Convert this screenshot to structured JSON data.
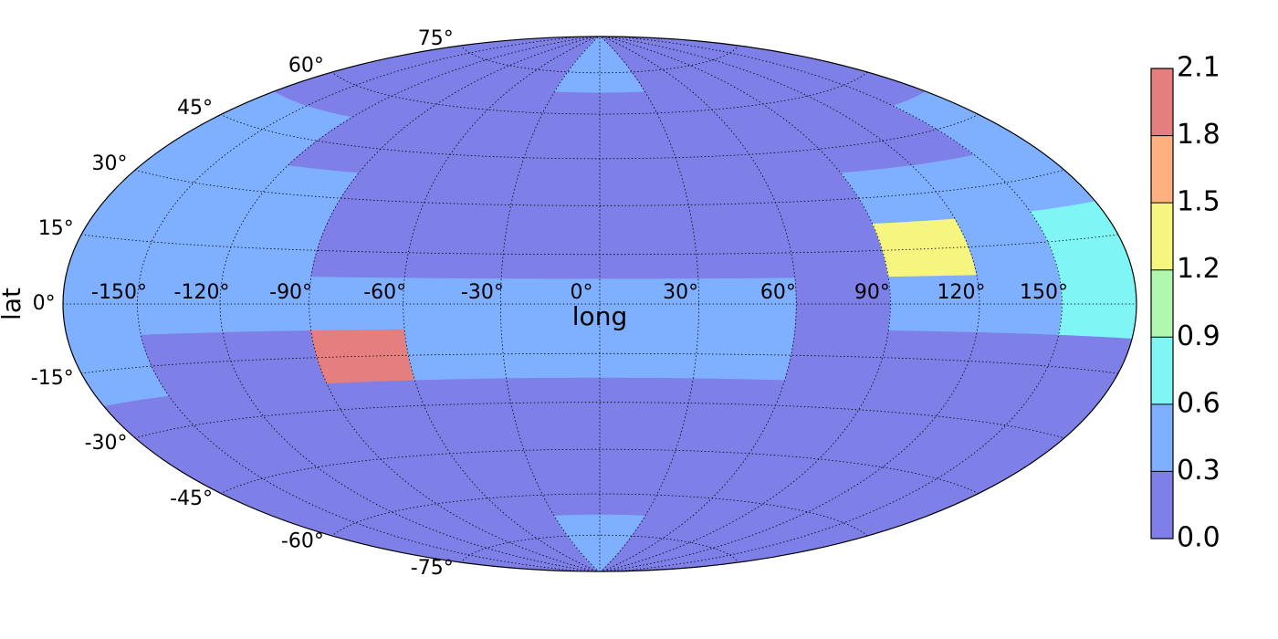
{
  "chart_data": {
    "type": "hammer-contour",
    "xlabel": "long",
    "ylabel": "lat",
    "xticks": [
      {
        "value": -150,
        "label": "-150°"
      },
      {
        "value": -120,
        "label": "-120°"
      },
      {
        "value": -90,
        "label": "-90°"
      },
      {
        "value": -60,
        "label": "-60°"
      },
      {
        "value": -30,
        "label": "-30°"
      },
      {
        "value": 0,
        "label": "0°"
      },
      {
        "value": 30,
        "label": "30°"
      },
      {
        "value": 60,
        "label": "60°"
      },
      {
        "value": 90,
        "label": "90°"
      },
      {
        "value": 120,
        "label": "120°"
      },
      {
        "value": 150,
        "label": "150°"
      }
    ],
    "yticks": [
      {
        "value": -75,
        "label": "-75°"
      },
      {
        "value": -60,
        "label": "-60°"
      },
      {
        "value": -45,
        "label": "-45°"
      },
      {
        "value": -30,
        "label": "-30°"
      },
      {
        "value": -15,
        "label": "-15°"
      },
      {
        "value": 0,
        "label": "0°"
      },
      {
        "value": 15,
        "label": "15°"
      },
      {
        "value": 30,
        "label": "30°"
      },
      {
        "value": 45,
        "label": "45°"
      },
      {
        "value": 60,
        "label": "60°"
      },
      {
        "value": 75,
        "label": "75°"
      }
    ],
    "xlim": [
      -180,
      180
    ],
    "ylim": [
      -90,
      90
    ],
    "grid": true,
    "lon_edges": [
      -180,
      -150,
      -120,
      -90,
      -60,
      -30,
      0,
      30,
      60,
      90,
      120,
      150,
      180
    ],
    "lat_edges": [
      90,
      67.5,
      52.5,
      37.5,
      22.5,
      7.5,
      -7.5,
      -22.5,
      -37.5,
      -52.5,
      -67.5,
      -90
    ],
    "values": [
      [
        0.2,
        0.2,
        0.2,
        0.2,
        0.2,
        0.4,
        0.4,
        0.2,
        0.2,
        0.2,
        0.2,
        0.2
      ],
      [
        0.2,
        0.2,
        0.2,
        0.2,
        0.2,
        0.2,
        0.2,
        0.2,
        0.2,
        0.2,
        0.2,
        0.2
      ],
      [
        0.4,
        0.4,
        0.2,
        0.2,
        0.2,
        0.2,
        0.2,
        0.2,
        0.2,
        0.2,
        0.2,
        0.35
      ],
      [
        0.4,
        0.4,
        0.4,
        0.2,
        0.2,
        0.2,
        0.2,
        0.2,
        0.2,
        0.4,
        0.4,
        0.4
      ],
      [
        0.4,
        0.4,
        0.4,
        0.2,
        0.2,
        0.2,
        0.2,
        0.2,
        0.2,
        1.4,
        0.5,
        0.7
      ],
      [
        0.4,
        0.4,
        0.4,
        0.5,
        0.4,
        0.4,
        0.4,
        0.4,
        0.2,
        0.5,
        0.4,
        0.6
      ],
      [
        0.35,
        0.2,
        0.2,
        1.9,
        0.4,
        0.4,
        0.4,
        0.4,
        0.2,
        0.2,
        0.2,
        0.2
      ],
      [
        0.2,
        0.2,
        0.2,
        0.2,
        0.2,
        0.2,
        0.2,
        0.2,
        0.2,
        0.2,
        0.2,
        0.2
      ],
      [
        0.2,
        0.2,
        0.2,
        0.2,
        0.2,
        0.2,
        0.2,
        0.2,
        0.2,
        0.2,
        0.2,
        0.2
      ],
      [
        0.2,
        0.2,
        0.2,
        0.2,
        0.2,
        0.2,
        0.2,
        0.2,
        0.2,
        0.2,
        0.2,
        0.2
      ],
      [
        0.2,
        0.2,
        0.2,
        0.2,
        0.2,
        0.4,
        0.4,
        0.2,
        0.2,
        0.2,
        0.2,
        0.2
      ]
    ],
    "colorbar": {
      "levels": [
        0,
        0.3,
        0.6,
        0.9,
        1.2,
        1.5,
        1.8,
        2.1
      ],
      "colors": [
        "#7f7fe8",
        "#7fb0ff",
        "#7ff5f5",
        "#b0f7b0",
        "#f5f57f",
        "#ffb07f",
        "#e57f7f"
      ],
      "ticks": [
        {
          "value": 0,
          "label": "0.0"
        },
        0.3,
        0.6,
        0.9,
        1.2,
        1.5,
        1.8,
        2.1
      ]
    }
  }
}
